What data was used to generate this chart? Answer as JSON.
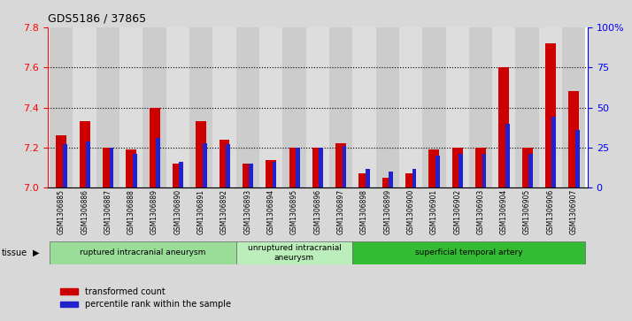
{
  "title": "GDS5186 / 37865",
  "samples": [
    "GSM1306885",
    "GSM1306886",
    "GSM1306887",
    "GSM1306888",
    "GSM1306889",
    "GSM1306890",
    "GSM1306891",
    "GSM1306892",
    "GSM1306893",
    "GSM1306894",
    "GSM1306895",
    "GSM1306896",
    "GSM1306897",
    "GSM1306898",
    "GSM1306899",
    "GSM1306900",
    "GSM1306901",
    "GSM1306902",
    "GSM1306903",
    "GSM1306904",
    "GSM1306905",
    "GSM1306906",
    "GSM1306907"
  ],
  "red_values": [
    7.26,
    7.33,
    7.2,
    7.19,
    7.4,
    7.12,
    7.33,
    7.24,
    7.12,
    7.14,
    7.2,
    7.2,
    7.22,
    7.07,
    7.05,
    7.07,
    7.19,
    7.2,
    7.2,
    7.6,
    7.2,
    7.72,
    7.48
  ],
  "blue_values": [
    27,
    29,
    25,
    21,
    31,
    16,
    28,
    27,
    15,
    16,
    25,
    25,
    26,
    12,
    10,
    12,
    20,
    21,
    21,
    40,
    21,
    44,
    36
  ],
  "ylim_left": [
    7.0,
    7.8
  ],
  "ylim_right": [
    0,
    100
  ],
  "yticks_left": [
    7.0,
    7.2,
    7.4,
    7.6,
    7.8
  ],
  "yticks_right": [
    0,
    25,
    50,
    75,
    100
  ],
  "ytick_labels_right": [
    "0",
    "25",
    "50",
    "75",
    "100%"
  ],
  "grid_values": [
    7.2,
    7.4,
    7.6
  ],
  "tissue_groups": [
    {
      "label": "ruptured intracranial aneurysm",
      "start": 0,
      "end": 8
    },
    {
      "label": "unruptured intracranial\naneurysm",
      "start": 8,
      "end": 13
    },
    {
      "label": "superficial temporal artery",
      "start": 13,
      "end": 23
    }
  ],
  "tissue_colors": [
    "#99dd99",
    "#bbeebb",
    "#33bb33"
  ],
  "bar_color_red": "#cc0000",
  "bar_color_blue": "#2222cc",
  "bg_color": "#d8d8d8",
  "plot_bg": "#ffffff",
  "col_even": "#cccccc",
  "col_odd": "#dddddd"
}
